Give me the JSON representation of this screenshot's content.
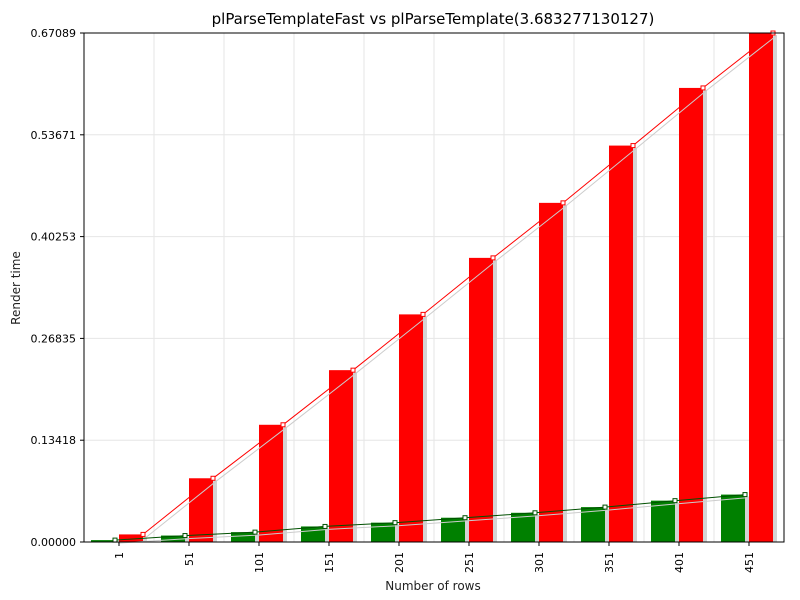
{
  "chart_data": {
    "type": "bar",
    "title": "plParseTemplateFast vs plParseTemplate(3.683277130127)",
    "xlabel": "Number of rows",
    "ylabel": "Render time",
    "categories": [
      "1",
      "51",
      "101",
      "151",
      "201",
      "251",
      "301",
      "351",
      "401",
      "451"
    ],
    "yticks": [
      "0.00000",
      "0.13418",
      "0.26835",
      "0.40253",
      "0.53671",
      "0.67089"
    ],
    "ylim": [
      0,
      0.67089
    ],
    "grid": true,
    "series": [
      {
        "color": "#008000",
        "values": [
          0.0025,
          0.0085,
          0.013,
          0.0205,
          0.0255,
          0.032,
          0.0385,
          0.046,
          0.0545,
          0.0625
        ]
      },
      {
        "color": "#ff0000",
        "values": [
          0.01,
          0.084,
          0.1545,
          0.2265,
          0.3,
          0.3745,
          0.447,
          0.5225,
          0.5985,
          0.67089
        ]
      }
    ]
  }
}
